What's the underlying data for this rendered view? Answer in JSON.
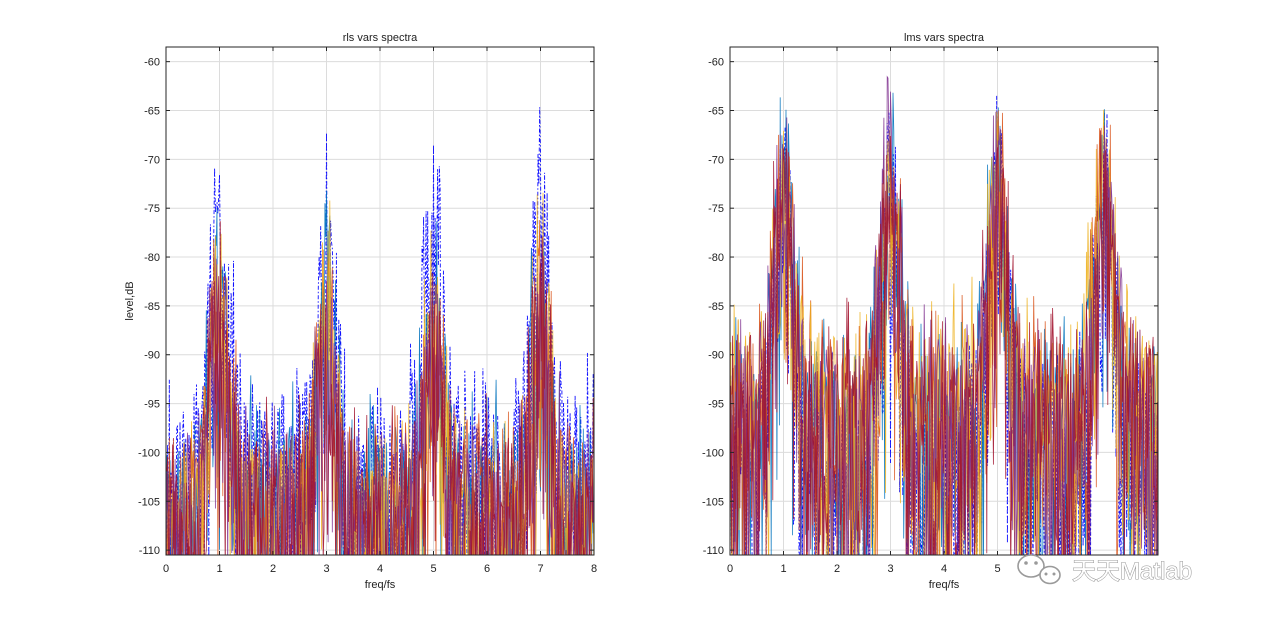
{
  "watermark": {
    "text": "天天Matlab"
  },
  "chart_data": [
    {
      "type": "line",
      "title": "rls vars spectra",
      "xlabel": "freq/fs",
      "ylabel": "level,dB",
      "xlim": [
        0,
        8
      ],
      "ylim": [
        -110.5,
        -58.5
      ],
      "xticks": [
        0,
        1,
        2,
        3,
        4,
        5,
        6,
        7,
        8
      ],
      "yticks": [
        -110,
        -105,
        -100,
        -95,
        -90,
        -85,
        -80,
        -75,
        -70,
        -65,
        -60
      ],
      "grid": true,
      "peaks": [
        1,
        3,
        5,
        7
      ],
      "series": [
        {
          "color": "#0000ff",
          "dash": true,
          "peak_levels": [
            -69,
            -69.5,
            -66.7,
            -65.3
          ],
          "floor": -93
        },
        {
          "color": "#0072bd",
          "dash": false,
          "peak_levels": [
            -76,
            -76,
            -77,
            -75.5
          ],
          "floor": -96
        },
        {
          "color": "#d95319",
          "dash": false,
          "peak_levels": [
            -76,
            -77,
            -78,
            -77
          ],
          "floor": -97
        },
        {
          "color": "#edb120",
          "dash": false,
          "peak_levels": [
            -74,
            -76,
            -78,
            -74
          ],
          "floor": -98
        },
        {
          "color": "#7e2f8e",
          "dash": false,
          "peak_levels": [
            -77,
            -80,
            -80,
            -78
          ],
          "floor": -98
        },
        {
          "color": "#a2142f",
          "dash": false,
          "peak_levels": [
            -77,
            -79,
            -79,
            -77
          ],
          "floor": -97
        }
      ]
    },
    {
      "type": "line",
      "title": "lms vars spectra",
      "xlabel": "freq/fs",
      "ylabel": "",
      "xlim": [
        0,
        8
      ],
      "ylim": [
        -110.5,
        -58.5
      ],
      "xticks": [
        0,
        1,
        2,
        3,
        4,
        5
      ],
      "yticks": [
        -110,
        -105,
        -100,
        -95,
        -90,
        -85,
        -80,
        -75,
        -70,
        -65,
        -60
      ],
      "grid": true,
      "peaks": [
        1,
        3,
        5,
        7
      ],
      "series": [
        {
          "color": "#0000ff",
          "dash": true,
          "peak_levels": [
            -66,
            -66,
            -64,
            -63
          ],
          "floor": -92
        },
        {
          "color": "#0072bd",
          "dash": false,
          "peak_levels": [
            -62,
            -63,
            -61,
            -64
          ],
          "floor": -88
        },
        {
          "color": "#d95319",
          "dash": false,
          "peak_levels": [
            -64,
            -64,
            -63,
            -63
          ],
          "floor": -87
        },
        {
          "color": "#edb120",
          "dash": false,
          "peak_levels": [
            -65,
            -66,
            -64,
            -63
          ],
          "floor": -86
        },
        {
          "color": "#7e2f8e",
          "dash": false,
          "peak_levels": [
            -61,
            -61,
            -62,
            -64
          ],
          "floor": -88
        },
        {
          "color": "#a2142f",
          "dash": false,
          "peak_levels": [
            -64,
            -65,
            -65,
            -65
          ],
          "floor": -87
        }
      ]
    }
  ]
}
